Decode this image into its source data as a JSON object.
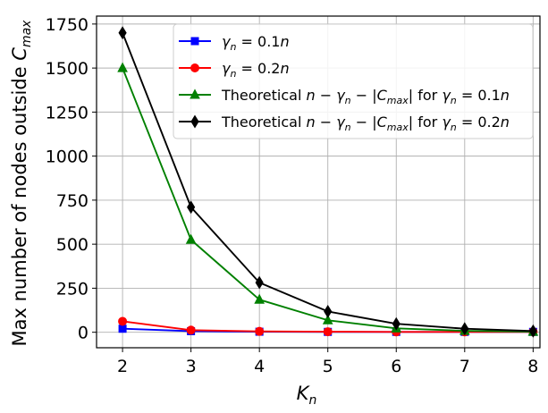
{
  "chart_data": {
    "type": "line",
    "title": "",
    "xlabel": {
      "base": "K",
      "sub": "n"
    },
    "ylabel": {
      "text": "Max number of nodes outside ",
      "var": "C",
      "sub": "max"
    },
    "x": [
      2,
      3,
      4,
      5,
      6,
      7,
      8
    ],
    "xticks": [
      "2",
      "3",
      "4",
      "5",
      "6",
      "7",
      "8"
    ],
    "yticks": [
      "0",
      "250",
      "500",
      "750",
      "1000",
      "1250",
      "1500",
      "1750"
    ],
    "ytick_values": [
      0,
      250,
      500,
      750,
      1000,
      1250,
      1500,
      1750
    ],
    "xlim": [
      1.62,
      8.1
    ],
    "ylim": [
      -88,
      1795
    ],
    "grid": true,
    "legend_position": "top-right",
    "series": [
      {
        "id": "s1",
        "legend": [
          {
            "t": "γ",
            "it": true
          },
          {
            "t": "n",
            "sub": true,
            "it": true
          },
          {
            "t": " = 0.1"
          },
          {
            "t": "n",
            "it": true
          }
        ],
        "color": "#0000ff",
        "marker": "square",
        "values": [
          20,
          6,
          3,
          2,
          2,
          2,
          2
        ]
      },
      {
        "id": "s2",
        "legend": [
          {
            "t": "γ",
            "it": true
          },
          {
            "t": "n",
            "sub": true,
            "it": true
          },
          {
            "t": " = 0.2"
          },
          {
            "t": "n",
            "it": true
          }
        ],
        "color": "#ff0000",
        "marker": "circle",
        "values": [
          62,
          12,
          5,
          3,
          2,
          2,
          2
        ]
      },
      {
        "id": "s3",
        "legend": [
          {
            "t": "Theoretical "
          },
          {
            "t": "n",
            "it": true
          },
          {
            "t": " − "
          },
          {
            "t": "γ",
            "it": true
          },
          {
            "t": "n",
            "sub": true,
            "it": true
          },
          {
            "t": " − |"
          },
          {
            "t": "C",
            "it": true
          },
          {
            "t": "max",
            "sub": true,
            "it": true
          },
          {
            "t": "| for "
          },
          {
            "t": "γ",
            "it": true
          },
          {
            "t": "n",
            "sub": true,
            "it": true
          },
          {
            "t": " = 0.1"
          },
          {
            "t": "n",
            "it": true
          }
        ],
        "color": "#008000",
        "marker": "triangle",
        "values": [
          1500,
          525,
          185,
          68,
          22,
          8,
          3
        ]
      },
      {
        "id": "s4",
        "legend": [
          {
            "t": "Theoretical "
          },
          {
            "t": "n",
            "it": true
          },
          {
            "t": " − "
          },
          {
            "t": "γ",
            "it": true
          },
          {
            "t": "n",
            "sub": true,
            "it": true
          },
          {
            "t": " − |"
          },
          {
            "t": "C",
            "it": true
          },
          {
            "t": "max",
            "sub": true,
            "it": true
          },
          {
            "t": "| for "
          },
          {
            "t": "γ",
            "it": true
          },
          {
            "t": "n",
            "sub": true,
            "it": true
          },
          {
            "t": " = 0.2"
          },
          {
            "t": "n",
            "it": true
          }
        ],
        "color": "#000000",
        "marker": "diamond",
        "values": [
          1700,
          710,
          282,
          118,
          48,
          20,
          7
        ]
      }
    ]
  }
}
